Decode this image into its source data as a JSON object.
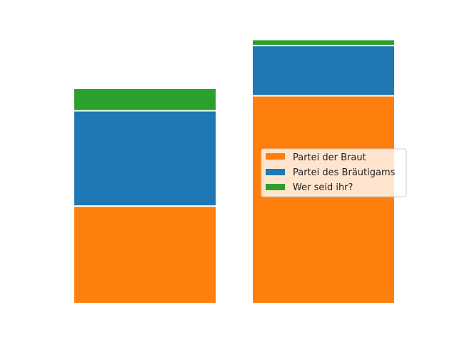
{
  "chart_data": {
    "type": "bar",
    "stacked": true,
    "categories": [
      "",
      ""
    ],
    "series": [
      {
        "name": "Partei der Braut",
        "color": "#ff7f0e",
        "values": [
          130,
          277
        ]
      },
      {
        "name": "Partei des Bräutigams",
        "color": "#1f77b4",
        "values": [
          127,
          67
        ]
      },
      {
        "name": "Wer seid ihr?",
        "color": "#2ca02c",
        "values": [
          30,
          8
        ]
      }
    ],
    "title": "",
    "xlabel": "",
    "ylabel": "",
    "ylim": [
      0,
      350
    ],
    "axes_visible": false,
    "grid": false,
    "legend_position": "center-right",
    "bar_edge_color": "#ffffff"
  }
}
